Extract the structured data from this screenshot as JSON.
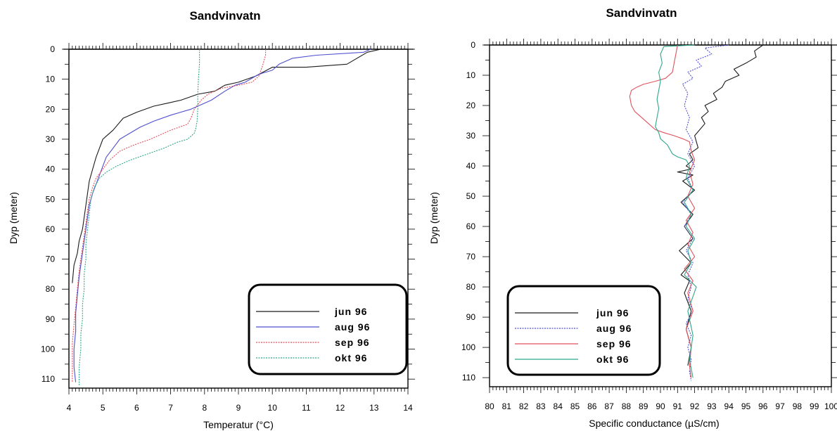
{
  "colors": {
    "jun 96": "#1a1a1a",
    "aug 96": "#4f4fd0",
    "sep 96": "#e0525e",
    "okt 96": "#2fa68a"
  },
  "chart_data": [
    {
      "type": "line",
      "title": "Sandvinvatn",
      "xlabel": "Temperatur (°C)",
      "ylabel": "Dyp (meter)",
      "xlim": [
        4,
        14
      ],
      "ylim": [
        0,
        113
      ],
      "y_inverted": true,
      "x_ticks": [
        "4",
        "5",
        "6",
        "7",
        "8",
        "9",
        "10",
        "11",
        "12",
        "13",
        "14"
      ],
      "y_ticks": [
        "0",
        "10",
        "20",
        "30",
        "40",
        "50",
        "60",
        "70",
        "80",
        "90",
        "100",
        "110"
      ],
      "legend": {
        "position": "bottom-right",
        "boxed": true
      },
      "grid": false,
      "series": [
        {
          "name": "jun 96",
          "color": "#1a1a1a",
          "x": [
            13.2,
            12.8,
            12.5,
            12.2,
            11.0,
            10.0,
            9.5,
            9.0,
            8.6,
            8.3,
            7.8,
            7.3,
            6.9,
            6.5,
            6.0,
            5.6,
            5.3,
            5.1,
            5.0,
            4.9,
            4.8,
            4.7,
            4.6,
            4.55,
            4.5,
            4.45,
            4.4,
            4.3,
            4.25,
            4.15,
            4.1
          ],
          "y": [
            0,
            1,
            3,
            5,
            6,
            6,
            9,
            11,
            12,
            14,
            15,
            17,
            18,
            19,
            21,
            23,
            27,
            29,
            30,
            33,
            36,
            40,
            44,
            48,
            52,
            56,
            60,
            64,
            68,
            72,
            78
          ]
        },
        {
          "name": "aug 96",
          "color": "#4f4fd0",
          "x": [
            12.9,
            12.7,
            11.3,
            10.6,
            10.2,
            10.0,
            9.7,
            9.5,
            9.2,
            8.9,
            8.6,
            8.2,
            7.6,
            7.0,
            6.5,
            6.1,
            5.8,
            5.5,
            5.3,
            5.1,
            5.0,
            4.9,
            4.8,
            4.7,
            4.6,
            4.55,
            4.5,
            4.45,
            4.4,
            4.35,
            4.3,
            4.25,
            4.2,
            4.2,
            4.15,
            4.15,
            4.2
          ],
          "y": [
            0,
            1,
            2,
            3,
            5,
            7,
            8,
            9,
            11,
            12,
            14,
            17,
            20,
            22,
            24,
            26,
            28,
            30,
            33,
            36,
            39,
            42,
            45,
            48,
            52,
            56,
            60,
            64,
            68,
            72,
            76,
            82,
            88,
            94,
            100,
            106,
            111
          ]
        },
        {
          "name": "sep 96",
          "color": "#e0525e",
          "x": [
            9.8,
            9.8,
            9.75,
            9.7,
            9.6,
            9.4,
            9.0,
            8.5,
            8.1,
            7.9,
            7.7,
            7.6,
            7.5,
            7.0,
            6.4,
            5.9,
            5.5,
            5.2,
            5.0,
            4.8,
            4.7,
            4.6,
            4.55,
            4.5,
            4.45,
            4.4,
            4.35,
            4.3,
            4.25,
            4.2,
            4.15,
            4.1,
            4.1,
            4.1
          ],
          "y": [
            0,
            2,
            4,
            6,
            9,
            11,
            12,
            13,
            15,
            17,
            20,
            23,
            25,
            27,
            30,
            32,
            34,
            37,
            40,
            43,
            46,
            50,
            54,
            58,
            62,
            66,
            70,
            74,
            80,
            86,
            92,
            98,
            104,
            111
          ]
        },
        {
          "name": "okt 96",
          "color": "#2fa68a",
          "x": [
            7.85,
            7.85,
            7.82,
            7.8,
            7.8,
            7.78,
            7.75,
            7.7,
            7.6,
            7.5,
            7.2,
            6.8,
            6.3,
            5.8,
            5.4,
            5.1,
            4.9,
            4.75,
            4.65,
            4.6,
            4.55,
            4.5,
            4.5,
            4.45,
            4.45,
            4.4,
            4.4,
            4.35,
            4.35,
            4.3,
            4.3
          ],
          "y": [
            0,
            5,
            10,
            15,
            20,
            24,
            26,
            28,
            29,
            30,
            31,
            33,
            35,
            37,
            39,
            41,
            43,
            46,
            50,
            55,
            60,
            65,
            70,
            75,
            80,
            85,
            90,
            95,
            100,
            106,
            112
          ]
        }
      ]
    },
    {
      "type": "line",
      "title": "Sandvinvatn",
      "xlabel": "Specific conductance (µS/cm)",
      "ylabel": "Dyp (meter)",
      "xlim": [
        80,
        100
      ],
      "ylim": [
        0,
        113
      ],
      "y_inverted": true,
      "x_ticks": [
        "80",
        "81",
        "82",
        "83",
        "84",
        "85",
        "86",
        "87",
        "88",
        "89",
        "90",
        "91",
        "92",
        "93",
        "94",
        "95",
        "96",
        "97",
        "98",
        "99",
        "100"
      ],
      "y_ticks": [
        "0",
        "10",
        "20",
        "30",
        "40",
        "50",
        "60",
        "70",
        "80",
        "90",
        "100",
        "110"
      ],
      "legend": {
        "position": "bottom-left",
        "boxed": true
      },
      "grid": false,
      "series": [
        {
          "name": "jun 96",
          "color": "#1a1a1a",
          "x": [
            96.0,
            95.5,
            95.6,
            95.0,
            94.3,
            94.6,
            93.8,
            93.6,
            93.1,
            93.3,
            92.6,
            92.8,
            92.4,
            92.6,
            92.0,
            92.2,
            91.7,
            91.9,
            91.5,
            91.8,
            91.0,
            91.9,
            91.3,
            92.0,
            91.2,
            91.9,
            91.4,
            91.9,
            91.1,
            91.8,
            91.2,
            91.7,
            91.4,
            91.8,
            91.5,
            91.8,
            91.6
          ],
          "y": [
            0,
            2,
            4,
            6,
            8,
            10,
            12,
            14,
            16,
            18,
            20,
            22,
            24,
            26,
            30,
            34,
            36,
            38,
            40,
            41,
            42,
            43,
            45,
            48,
            52,
            56,
            60,
            64,
            68,
            72,
            76,
            78,
            82,
            88,
            94,
            100,
            106
          ]
        },
        {
          "name": "aug 96",
          "color": "#4f4fd0",
          "x": [
            94.0,
            92.6,
            93.0,
            92.1,
            92.4,
            91.6,
            91.9,
            91.3,
            91.6,
            91.4,
            91.7,
            91.5,
            91.9,
            91.6,
            92.0,
            91.6,
            91.9,
            91.3,
            91.8,
            91.4,
            91.9,
            91.5,
            91.9,
            91.6,
            91.8,
            91.6,
            91.9,
            91.5,
            91.8,
            91.6,
            91.8,
            91.7,
            91.8
          ],
          "y": [
            0,
            1,
            3,
            5,
            7,
            9,
            11,
            13,
            16,
            20,
            24,
            28,
            32,
            36,
            40,
            44,
            48,
            52,
            56,
            60,
            64,
            68,
            72,
            76,
            80,
            84,
            88,
            92,
            96,
            100,
            104,
            108,
            111
          ]
        },
        {
          "name": "sep 96",
          "color": "#e0525e",
          "x": [
            91.0,
            90.9,
            90.8,
            90.7,
            90.3,
            89.7,
            89.0,
            88.6,
            88.3,
            88.2,
            88.3,
            88.5,
            88.9,
            89.3,
            89.7,
            90.2,
            90.8,
            91.3,
            91.7,
            91.8,
            92.0,
            91.7,
            91.9,
            91.6,
            92.0,
            91.5,
            91.9,
            91.6,
            92.0,
            91.4,
            91.9,
            91.6,
            91.9,
            91.5,
            91.8,
            91.7,
            91.8
          ],
          "y": [
            0,
            3,
            6,
            9,
            11,
            12,
            13,
            14,
            15,
            17,
            20,
            22,
            24,
            26,
            28,
            29,
            30,
            31,
            32,
            35,
            38,
            42,
            46,
            50,
            54,
            58,
            62,
            66,
            70,
            74,
            78,
            82,
            88,
            94,
            100,
            106,
            110
          ]
        },
        {
          "name": "okt 96",
          "color": "#2fa68a",
          "x": [
            92.0,
            90.2,
            90.0,
            90.1,
            89.9,
            90.0,
            89.9,
            89.8,
            89.9,
            89.8,
            89.7,
            89.9,
            90.0,
            90.4,
            90.6,
            90.7,
            91.0,
            91.5,
            91.7,
            91.5,
            91.9,
            91.4,
            91.8,
            91.5,
            92.0,
            91.6,
            91.8,
            91.4,
            92.1,
            91.6,
            91.9,
            91.7,
            91.9
          ],
          "y": [
            0,
            0.5,
            3,
            6,
            9,
            12,
            15,
            18,
            21,
            24,
            27,
            29,
            31,
            33,
            35,
            36,
            37,
            38,
            40,
            44,
            48,
            52,
            56,
            60,
            64,
            68,
            72,
            76,
            80,
            88,
            96,
            104,
            110
          ]
        }
      ]
    }
  ]
}
